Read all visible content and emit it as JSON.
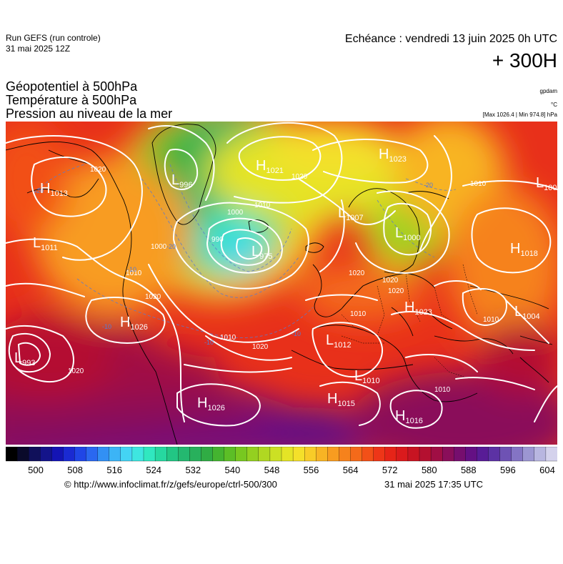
{
  "header": {
    "run_title": "Run GEFS (run controle)",
    "run_date": "31 mai 2025 12Z",
    "valid_time": "Echéance : vendredi 13 juin 2025 0h UTC",
    "lead_time": "+ 300H",
    "fields": [
      "Géopotentiel à 500hPa",
      "Température à 500hPa",
      "Pression au niveau de la mer"
    ],
    "unit_gpdam": "gpdam",
    "unit_c": "°C",
    "maxmin": "[Max 1026.4 | Min 974.8] hPa"
  },
  "pressure_centers": [
    {
      "letter": "H",
      "value": "1013"
    },
    {
      "letter": "L",
      "value": "1011"
    },
    {
      "letter": "L",
      "value": "996"
    },
    {
      "letter": "H",
      "value": "1021"
    },
    {
      "letter": "H",
      "value": "1023"
    },
    {
      "letter": "L",
      "value": "100"
    },
    {
      "letter": "L",
      "value": "1007"
    },
    {
      "letter": "L",
      "value": "1000"
    },
    {
      "letter": "L",
      "value": "975"
    },
    {
      "letter": "H",
      "value": "1018"
    },
    {
      "letter": "H",
      "value": "1026"
    },
    {
      "letter": "H",
      "value": "1023"
    },
    {
      "letter": "L",
      "value": "1004"
    },
    {
      "letter": "L",
      "value": "993"
    },
    {
      "letter": "L",
      "value": "1012"
    },
    {
      "letter": "L",
      "value": "1010"
    },
    {
      "letter": "H",
      "value": "1015"
    },
    {
      "letter": "H",
      "value": "1026"
    },
    {
      "letter": "H",
      "value": "1016"
    }
  ],
  "isobar_labels": [
    "1020",
    "1000",
    "1010",
    "990",
    "1000",
    "1020",
    "1010",
    "1020",
    "1020",
    "1010",
    "1010",
    "1020",
    "1020",
    "1020",
    "1010",
    "1010",
    "1010",
    "1020"
  ],
  "temp_labels": [
    "-20",
    "-20",
    "-10",
    "-10",
    "-10",
    "-10",
    "-20"
  ],
  "legend": {
    "colors": [
      "#000000",
      "#0a0a2a",
      "#10105a",
      "#14148a",
      "#1414b4",
      "#1a2ad2",
      "#2046e6",
      "#2a68f0",
      "#3290f4",
      "#3cb4f6",
      "#44d4f4",
      "#3ee6e0",
      "#30e8c0",
      "#26d8a0",
      "#22c684",
      "#24b870",
      "#28b05c",
      "#30ac44",
      "#44b430",
      "#5cbe26",
      "#78c820",
      "#94d020",
      "#b0d822",
      "#cce024",
      "#e4e426",
      "#f4e02a",
      "#f8cc28",
      "#f8b424",
      "#f89c20",
      "#f6821c",
      "#f46a1a",
      "#f25018",
      "#ee3618",
      "#e62418",
      "#da1a1c",
      "#c81422",
      "#b41030",
      "#a00e44",
      "#8a0e5a",
      "#760e6e",
      "#641084",
      "#581c96",
      "#5c32a4",
      "#6e52b4",
      "#8474c4",
      "#9c96d2",
      "#b8b6e0",
      "#d4d2ec"
    ],
    "ticks": [
      "500",
      "508",
      "516",
      "524",
      "532",
      "540",
      "548",
      "556",
      "564",
      "572",
      "580",
      "588",
      "596",
      "604"
    ]
  },
  "footer": {
    "url": "© http://www.infoclimat.fr/z/gefs/europe/ctrl-500/300",
    "generated": "31 mai 2025 17:35 UTC"
  }
}
